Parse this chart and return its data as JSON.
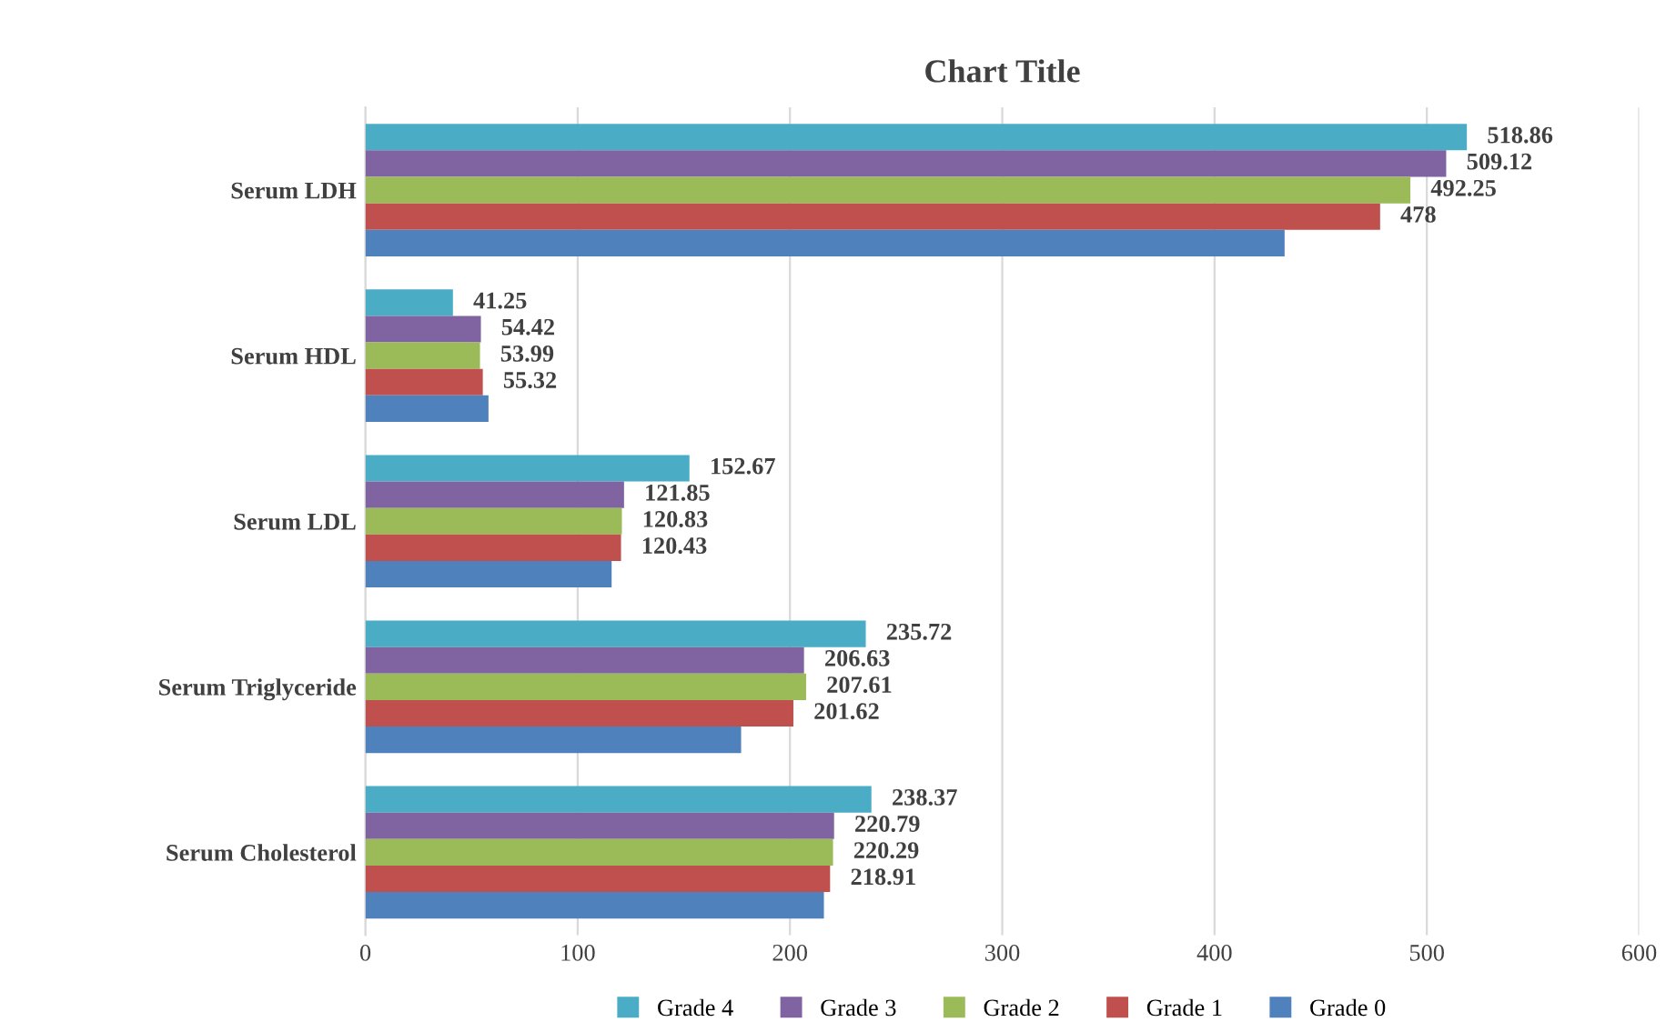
{
  "chart_data": {
    "type": "bar",
    "orientation": "horizontal",
    "title": "Chart Title",
    "categories": [
      "Serum LDH",
      "Serum HDL",
      "Serum LDL",
      "Serum Triglyceride",
      "Serum Cholesterol"
    ],
    "series": [
      {
        "name": "Grade 4",
        "color": "#4bacc6",
        "values": [
          518.86,
          41.25,
          152.67,
          235.72,
          238.37
        ],
        "value_labels": [
          "518.86",
          "41.25",
          "152.67",
          "235.72",
          "238.37"
        ]
      },
      {
        "name": "Grade 3",
        "color": "#8064a2",
        "values": [
          509.12,
          54.42,
          121.85,
          206.63,
          220.79
        ],
        "value_labels": [
          "509.12",
          "54.42",
          "121.85",
          "206.63",
          "220.79"
        ]
      },
      {
        "name": "Grade 2",
        "color": "#9bbb59",
        "values": [
          492.25,
          53.99,
          120.83,
          207.61,
          220.29
        ],
        "value_labels": [
          "492.25",
          "53.99",
          "120.83",
          "207.61",
          "220.29"
        ]
      },
      {
        "name": "Grade 1",
        "color": "#c0504d",
        "values": [
          478,
          55.32,
          120.43,
          201.62,
          218.91
        ],
        "value_labels": [
          "478",
          "55.32",
          "120.43",
          "201.62",
          "218.91"
        ]
      },
      {
        "name": "Grade 0",
        "color": "#4f81bd",
        "values": [
          433,
          58,
          116,
          177,
          216
        ]
      }
    ],
    "xlim": [
      0,
      600
    ],
    "xticks": [
      0,
      100,
      200,
      300,
      400,
      500,
      600
    ],
    "grid": "x",
    "legend": "bottom"
  }
}
